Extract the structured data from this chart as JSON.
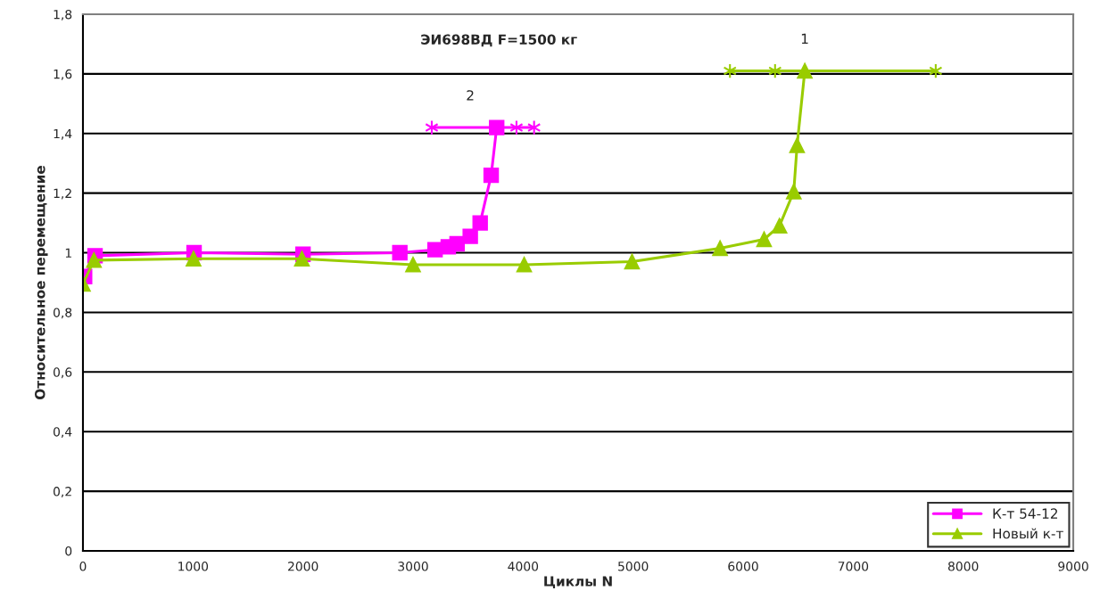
{
  "chart_data": {
    "type": "line",
    "title": "ЭИ698ВД F=1500 кг",
    "xlabel": "Циклы N",
    "ylabel": "Относительное перемещение",
    "xlim": [
      0,
      9000
    ],
    "xticks": [
      0,
      1000,
      2000,
      3000,
      4000,
      5000,
      6000,
      7000,
      8000,
      9000
    ],
    "ylim": [
      0,
      1.8
    ],
    "yticks": [
      0,
      {
        "value": 0.2,
        "label": "0,2"
      },
      {
        "value": 0.4,
        "label": "0,4"
      },
      {
        "value": 0.6,
        "label": "0,6"
      },
      {
        "value": 0.8,
        "label": "0,8"
      },
      1,
      {
        "value": 1.2,
        "label": "1,2"
      },
      {
        "value": 1.4,
        "label": "1,4"
      },
      {
        "value": 1.6,
        "label": "1,6"
      },
      {
        "value": 1.8,
        "label": "1,8"
      }
    ],
    "grid": "y",
    "legend": "bottom right",
    "series": [
      {
        "name": "К-т 54-12",
        "color": "#ff00ff",
        "marker": "square",
        "x": [
          15,
          110,
          1010,
          2000,
          2880,
          3200,
          3320,
          3400,
          3520,
          3610,
          3710,
          3760
        ],
        "values": [
          0.92,
          0.99,
          1.0,
          0.995,
          1.0,
          1.01,
          1.02,
          1.03,
          1.055,
          1.1,
          1.26,
          1.42
        ]
      },
      {
        "name": "Новый к-т",
        "color": "#99cc00",
        "marker": "triangle",
        "x": [
          0,
          100,
          1005,
          1990,
          3000,
          4010,
          4990,
          5790,
          6190,
          6330,
          6460,
          6490,
          6560
        ],
        "values": [
          0.895,
          0.975,
          0.98,
          0.98,
          0.96,
          0.96,
          0.97,
          1.015,
          1.045,
          1.09,
          1.205,
          1.36,
          1.61
        ]
      },
      {
        "color": "#ff00ff",
        "marker": "cross",
        "x": [
          3170,
          3940,
          4100
        ],
        "values": [
          1.42,
          1.42,
          1.42
        ]
      },
      {
        "color": "#99cc00",
        "marker": "cross",
        "x": [
          5880,
          6290,
          7750
        ],
        "values": [
          1.61,
          1.61,
          1.61
        ]
      }
    ],
    "annotations": [
      {
        "text": "2",
        "x": 3520,
        "y": 1.42
      },
      {
        "text": "1",
        "x": 6560,
        "y": 1.61
      }
    ]
  }
}
